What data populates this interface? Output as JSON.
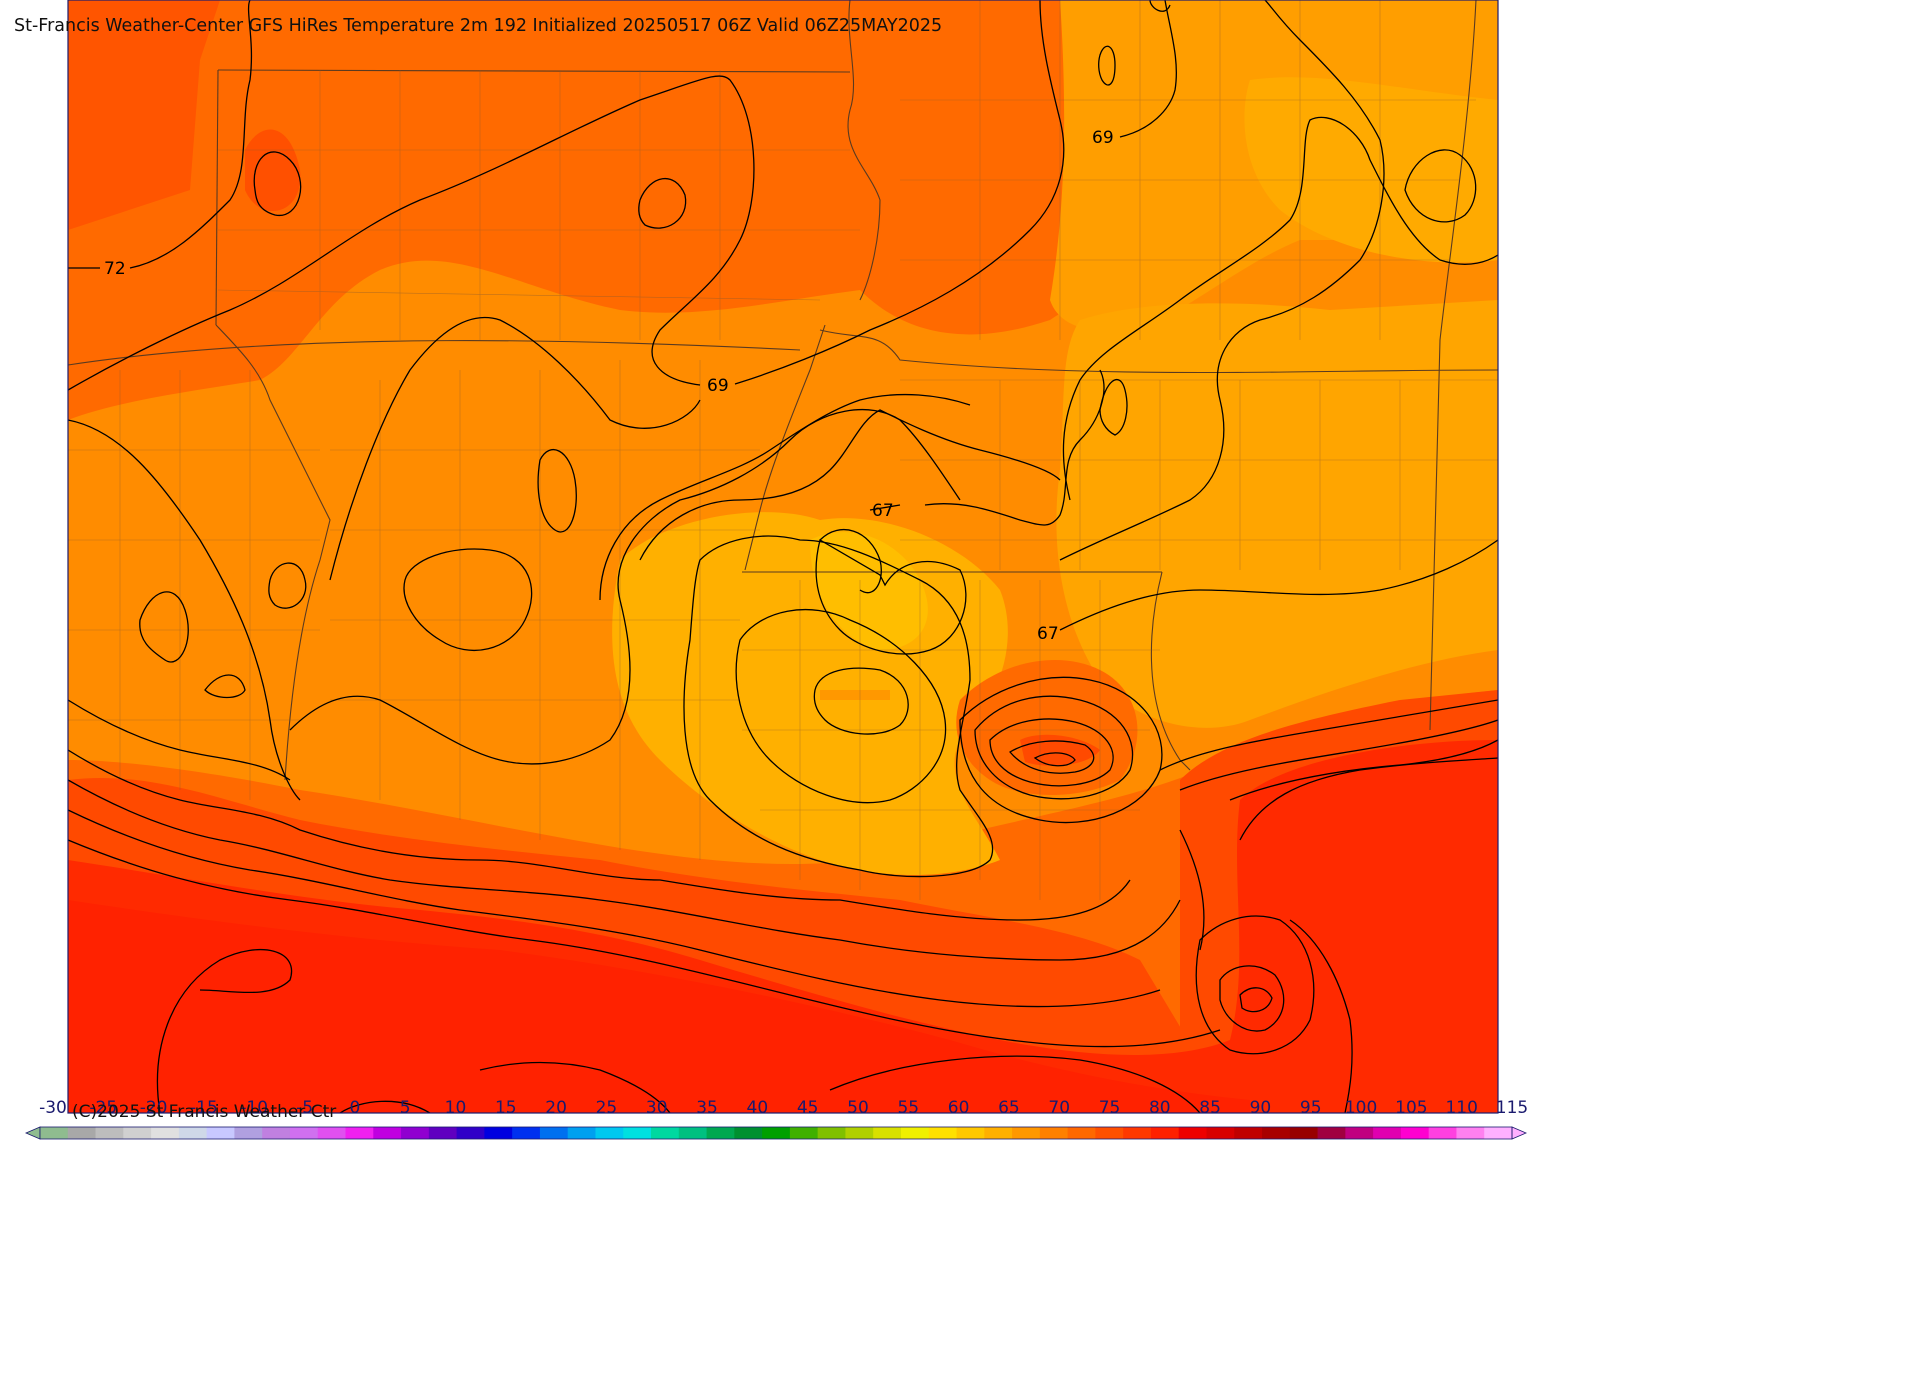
{
  "map": {
    "title": "St-Francis Weather-Center GFS HiRes Temperature 2m  192 Initialized 20250517 06Z Valid 06Z25MAY2025",
    "copyright": "(C)2025 St Francis Weather Ctr",
    "contour_labels": [
      "72",
      "69",
      "69",
      "67",
      "67"
    ]
  },
  "colorbar": {
    "ticks": [
      "-30",
      "-25",
      "-20",
      "-15",
      "-10",
      "-5",
      "0",
      "5",
      "10",
      "15",
      "20",
      "25",
      "30",
      "35",
      "40",
      "45",
      "50",
      "55",
      "60",
      "65",
      "70",
      "75",
      "80",
      "85",
      "90",
      "95",
      "100",
      "105",
      "110",
      "115"
    ],
    "colors": [
      "#8fbc8f",
      "#a8a8a8",
      "#bdbdbd",
      "#d0d0d0",
      "#e0e0e0",
      "#cfd8e8",
      "#c8c8ff",
      "#b0a0e0",
      "#c080e0",
      "#d070f0",
      "#e050f0",
      "#f020f0",
      "#c000e0",
      "#9000d0",
      "#6000c0",
      "#3000c8",
      "#0000e0",
      "#0030f0",
      "#0070f0",
      "#00a0f0",
      "#00c8f0",
      "#00e0e0",
      "#00d8a0",
      "#00c080",
      "#00a850",
      "#009030",
      "#00a000",
      "#40b000",
      "#80c000",
      "#b0d000",
      "#d8e000",
      "#f0f000",
      "#ffe000",
      "#ffc800",
      "#ffb000",
      "#ff9800",
      "#ff8000",
      "#ff6800",
      "#ff5000",
      "#ff3800",
      "#ff2000",
      "#ee0000",
      "#d80000",
      "#c00000",
      "#a80000",
      "#980000",
      "#a00040",
      "#c00080",
      "#e000b0",
      "#ff00d0",
      "#ff40e0",
      "#ff80f0",
      "#ffb0ff"
    ]
  }
}
